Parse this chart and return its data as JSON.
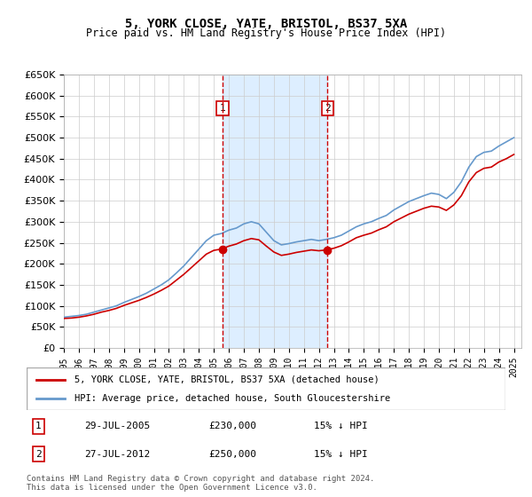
{
  "title": "5, YORK CLOSE, YATE, BRISTOL, BS37 5XA",
  "subtitle": "Price paid vs. HM Land Registry's House Price Index (HPI)",
  "legend_line1": "5, YORK CLOSE, YATE, BRISTOL, BS37 5XA (detached house)",
  "legend_line2": "HPI: Average price, detached house, South Gloucestershire",
  "footer": "Contains HM Land Registry data © Crown copyright and database right 2024.\nThis data is licensed under the Open Government Licence v3.0.",
  "transactions": [
    {
      "num": 1,
      "date": "29-JUL-2005",
      "price": 230000,
      "note": "15% ↓ HPI",
      "year": 2005.57
    },
    {
      "num": 2,
      "date": "27-JUL-2012",
      "price": 250000,
      "note": "15% ↓ HPI",
      "year": 2012.57
    }
  ],
  "hpi_color": "#6699cc",
  "price_color": "#cc0000",
  "marker_color": "#cc0000",
  "shade_color": "#ddeeff",
  "dashed_color": "#cc0000",
  "ylim": [
    0,
    650000
  ],
  "yticks": [
    0,
    50000,
    100000,
    150000,
    200000,
    250000,
    300000,
    350000,
    400000,
    450000,
    500000,
    550000,
    600000,
    650000
  ],
  "xlim_start": 1995.0,
  "xlim_end": 2025.5,
  "hpi_x": [
    1995.0,
    1995.5,
    1996.0,
    1996.5,
    1997.0,
    1997.5,
    1998.0,
    1998.5,
    1999.0,
    1999.5,
    2000.0,
    2000.5,
    2001.0,
    2001.5,
    2002.0,
    2002.5,
    2003.0,
    2003.5,
    2004.0,
    2004.5,
    2005.0,
    2005.5,
    2006.0,
    2006.5,
    2007.0,
    2007.5,
    2008.0,
    2008.5,
    2009.0,
    2009.5,
    2010.0,
    2010.5,
    2011.0,
    2011.5,
    2012.0,
    2012.5,
    2013.0,
    2013.5,
    2014.0,
    2014.5,
    2015.0,
    2015.5,
    2016.0,
    2016.5,
    2017.0,
    2017.5,
    2018.0,
    2018.5,
    2019.0,
    2019.5,
    2020.0,
    2020.5,
    2021.0,
    2021.5,
    2022.0,
    2022.5,
    2023.0,
    2023.5,
    2024.0,
    2024.5,
    2025.0
  ],
  "hpi_y": [
    73000,
    75000,
    77000,
    80000,
    85000,
    90000,
    95000,
    100000,
    108000,
    115000,
    122000,
    130000,
    140000,
    150000,
    162000,
    178000,
    195000,
    215000,
    235000,
    255000,
    268000,
    272000,
    280000,
    285000,
    295000,
    300000,
    295000,
    275000,
    255000,
    245000,
    248000,
    252000,
    255000,
    258000,
    255000,
    258000,
    262000,
    268000,
    278000,
    288000,
    295000,
    300000,
    308000,
    315000,
    328000,
    338000,
    348000,
    355000,
    362000,
    368000,
    365000,
    355000,
    370000,
    395000,
    430000,
    455000,
    465000,
    468000,
    480000,
    490000,
    500000
  ],
  "price_x": [
    1995.0,
    1995.5,
    1996.0,
    1996.5,
    1997.0,
    1997.5,
    1998.0,
    1998.5,
    1999.0,
    1999.5,
    2000.0,
    2000.5,
    2001.0,
    2001.5,
    2002.0,
    2002.5,
    2003.0,
    2003.5,
    2004.0,
    2004.5,
    2005.0,
    2005.5,
    2006.0,
    2006.5,
    2007.0,
    2007.5,
    2008.0,
    2008.5,
    2009.0,
    2009.5,
    2010.0,
    2010.5,
    2011.0,
    2011.5,
    2012.0,
    2012.5,
    2013.0,
    2013.5,
    2014.0,
    2014.5,
    2015.0,
    2015.5,
    2016.0,
    2016.5,
    2017.0,
    2017.5,
    2018.0,
    2018.5,
    2019.0,
    2019.5,
    2020.0,
    2020.5,
    2021.0,
    2021.5,
    2022.0,
    2022.5,
    2023.0,
    2023.5,
    2024.0,
    2024.5,
    2025.0
  ],
  "price_y": [
    70000,
    71000,
    73000,
    76000,
    80000,
    85000,
    89000,
    94000,
    101000,
    107000,
    113000,
    120000,
    128000,
    137000,
    147000,
    161000,
    175000,
    191000,
    207000,
    223000,
    232000,
    235000,
    242000,
    247000,
    255000,
    260000,
    257000,
    242000,
    228000,
    220000,
    223000,
    227000,
    230000,
    233000,
    231000,
    233000,
    237000,
    243000,
    252000,
    262000,
    268000,
    273000,
    281000,
    288000,
    300000,
    309000,
    318000,
    325000,
    332000,
    337000,
    335000,
    327000,
    340000,
    362000,
    395000,
    417000,
    427000,
    430000,
    442000,
    450000,
    460000
  ]
}
